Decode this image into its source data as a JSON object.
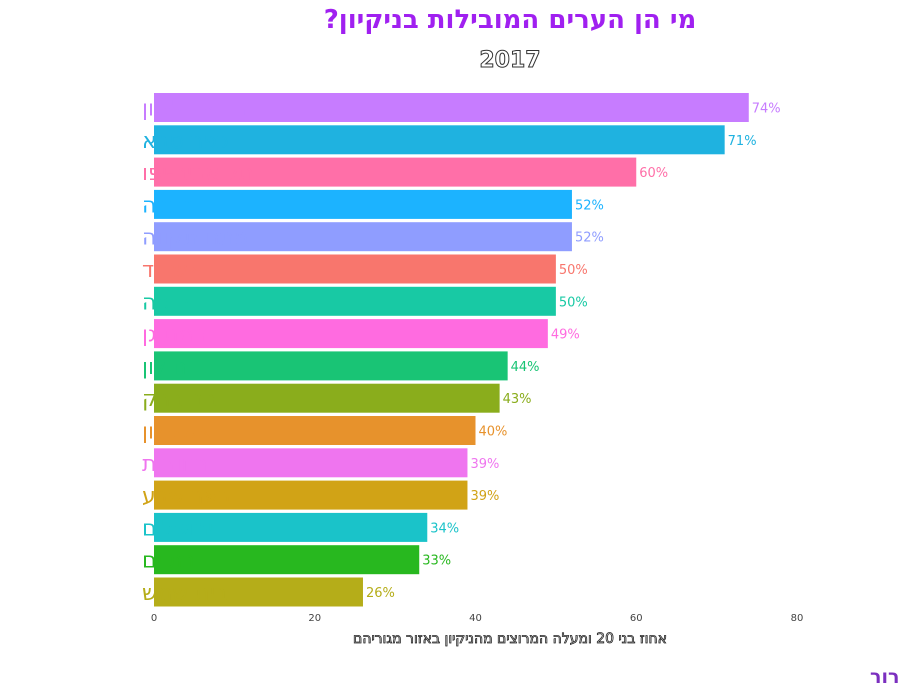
{
  "colors": {
    "title": "#a020f0",
    "source": "#7b2fbf",
    "tick": "#444444"
  },
  "chart_data": {
    "type": "bar",
    "orientation": "horizontal",
    "title": "מי הן הערים המובילות בניקיון?",
    "subtitle": "2017",
    "xlabel": "אחוז בני 20 ומעלה המרוצים מהניקיון באזור מגוריהם",
    "source": "מקור: הסקר החברתי, הלשכה המרכזית לסטטיסטיקה. עיבוד ועריכה: שלומית דרור",
    "xlim": [
      0,
      80
    ],
    "xticks": [
      0,
      20,
      40,
      60,
      80
    ],
    "grid": false,
    "categories": [
      "ראשון לציון",
      "כפר סבא",
      "תל אביב-יפו",
      "נתניה",
      "פתח תקווה",
      "אשדוד",
      "חיפה",
      "רמת גן",
      "חולון",
      "בני ברק",
      "אשקלון",
      "רחובות",
      "באר שבע",
      "ירושלים",
      "בת ים",
      "בית שמש"
    ],
    "values": [
      74,
      71,
      60,
      52,
      52,
      50,
      50,
      49,
      44,
      43,
      40,
      39,
      39,
      34,
      33,
      26
    ],
    "value_labels": [
      "74%",
      "71%",
      "60%",
      "52%",
      "52%",
      "50%",
      "50%",
      "49%",
      "44%",
      "43%",
      "40%",
      "39%",
      "39%",
      "34%",
      "33%",
      "26%"
    ],
    "colors": [
      "#c77cff",
      "#1fb2e0",
      "#ff6fa8",
      "#1cb3ff",
      "#8f9dff",
      "#f8766d",
      "#18c9a4",
      "#ff6be0",
      "#19c475",
      "#8aad1c",
      "#e7922c",
      "#ef75ef",
      "#d1a316",
      "#1ac3c9",
      "#28b81f",
      "#b5ad19"
    ]
  }
}
